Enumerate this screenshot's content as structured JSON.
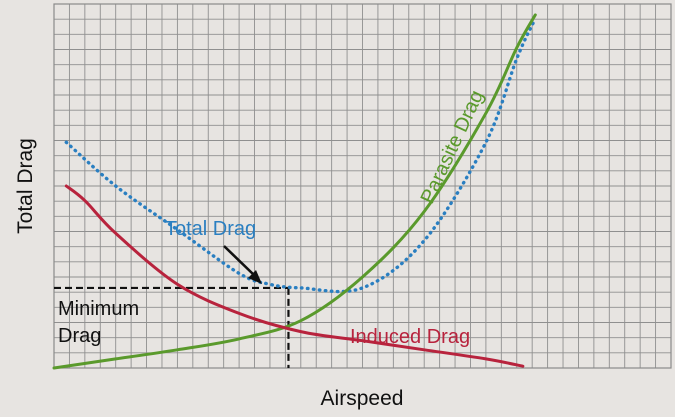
{
  "chart_data": {
    "type": "line",
    "xlabel": "Airspeed",
    "ylabel": "Total Drag",
    "xlim": [
      0,
      10
    ],
    "ylim": [
      0,
      10
    ],
    "grid": true,
    "series": [
      {
        "name": "Total Drag",
        "color": "#2a7fc1",
        "style": "dotted",
        "x": [
          0.2,
          1.0,
          2.0,
          3.0,
          3.5,
          4.0,
          5.0,
          6.0,
          7.0,
          7.5,
          7.8
        ],
        "y": [
          6.2,
          5.0,
          3.8,
          2.6,
          2.3,
          2.2,
          2.2,
          3.5,
          6.2,
          8.5,
          9.6
        ]
      },
      {
        "name": "Parasite Drag",
        "color": "#5a9a2c",
        "style": "solid",
        "x": [
          0.0,
          1.0,
          2.0,
          3.0,
          4.0,
          5.0,
          6.0,
          7.0,
          7.5,
          7.8
        ],
        "y": [
          0.0,
          0.25,
          0.5,
          0.8,
          1.3,
          2.5,
          4.3,
          7.0,
          8.8,
          9.7
        ]
      },
      {
        "name": "Induced Drag",
        "color": "#b8233d",
        "style": "solid",
        "x": [
          0.2,
          0.5,
          1.0,
          2.0,
          3.0,
          4.0,
          5.0,
          6.0,
          7.0,
          7.6
        ],
        "y": [
          5.0,
          4.6,
          3.7,
          2.3,
          1.5,
          1.0,
          0.75,
          0.5,
          0.25,
          0.05
        ]
      }
    ],
    "annotations": {
      "minimum_drag": {
        "label_lines": [
          "Minimum",
          "Drag"
        ],
        "x": 3.8,
        "y": 2.2
      },
      "total_drag_label": "Total Drag",
      "parasite_drag_label": "Parasite Drag",
      "induced_drag_label": "Induced Drag"
    }
  }
}
